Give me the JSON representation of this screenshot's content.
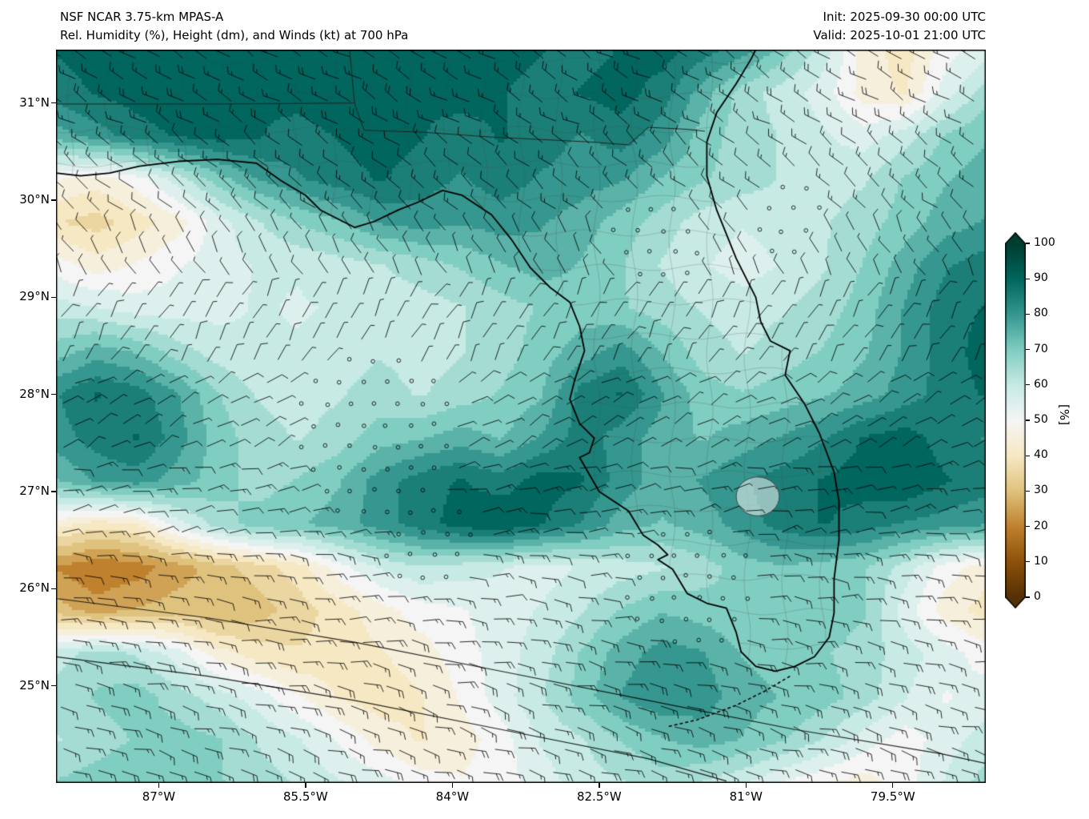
{
  "header": {
    "title_line1": "NSF NCAR 3.75-km MPAS-A",
    "title_line2": "Rel. Humidity (%), Height (dm), and Winds (kt) at 700 hPa",
    "init_line": "Init: 2025-09-30 00:00 UTC",
    "valid_line": "Valid: 2025-10-01 21:00 UTC"
  },
  "axes": {
    "x_ticks": [
      {
        "label": "87°W",
        "lon": 87.0
      },
      {
        "label": "85.5°W",
        "lon": 85.5
      },
      {
        "label": "84°W",
        "lon": 84.0
      },
      {
        "label": "82.5°W",
        "lon": 82.5
      },
      {
        "label": "81°W",
        "lon": 81.0
      },
      {
        "label": "79.5°W",
        "lon": 79.5
      }
    ],
    "y_ticks": [
      {
        "label": "31°N",
        "lat": 31.0
      },
      {
        "label": "30°N",
        "lat": 30.0
      },
      {
        "label": "29°N",
        "lat": 29.0
      },
      {
        "label": "28°N",
        "lat": 28.0
      },
      {
        "label": "27°N",
        "lat": 27.0
      },
      {
        "label": "26°N",
        "lat": 26.0
      },
      {
        "label": "25°N",
        "lat": 25.0
      }
    ]
  },
  "colorbar": {
    "label": "[%]",
    "ticks": [
      100,
      90,
      80,
      70,
      60,
      50,
      40,
      30,
      20,
      10,
      0
    ],
    "stops": [
      {
        "v": 0,
        "c": "#543005"
      },
      {
        "v": 10,
        "c": "#8c510a"
      },
      {
        "v": 20,
        "c": "#bf812d"
      },
      {
        "v": 30,
        "c": "#dfc27d"
      },
      {
        "v": 40,
        "c": "#f6e8c3"
      },
      {
        "v": 50,
        "c": "#f5f5f5"
      },
      {
        "v": 60,
        "c": "#c7eae5"
      },
      {
        "v": 70,
        "c": "#80cdc1"
      },
      {
        "v": 80,
        "c": "#35978f"
      },
      {
        "v": 90,
        "c": "#01665e"
      },
      {
        "v": 100,
        "c": "#003c30"
      }
    ]
  },
  "chart_data": {
    "type": "heatmap",
    "title": "NSF NCAR 3.75-km MPAS-A",
    "subtitle": "Rel. Humidity (%), Height (dm), and Winds (kt) at 700 hPa",
    "units": "%",
    "lon_range_w": [
      88.05,
      78.55
    ],
    "lat_range": [
      31.55,
      24.0
    ],
    "value_range": [
      0,
      100
    ],
    "rh_grid": {
      "cols": 24,
      "rows": 18,
      "note": "relative humidity percent, row 0 = north (31.55N), col 0 = west (88.05W)",
      "values": [
        [
          88,
          90,
          92,
          90,
          88,
          90,
          92,
          90,
          88,
          90,
          92,
          90,
          88,
          85,
          88,
          90,
          85,
          80,
          70,
          60,
          45,
          40,
          50,
          55
        ],
        [
          85,
          88,
          90,
          92,
          90,
          88,
          90,
          92,
          90,
          88,
          90,
          88,
          85,
          88,
          90,
          85,
          75,
          65,
          60,
          55,
          45,
          42,
          55,
          65
        ],
        [
          75,
          80,
          85,
          88,
          90,
          88,
          85,
          88,
          90,
          88,
          85,
          88,
          85,
          82,
          85,
          80,
          70,
          65,
          62,
          58,
          55,
          60,
          68,
          72
        ],
        [
          48,
          45,
          50,
          60,
          70,
          78,
          82,
          85,
          88,
          85,
          82,
          85,
          82,
          80,
          78,
          72,
          68,
          65,
          62,
          60,
          62,
          68,
          72,
          75
        ],
        [
          38,
          35,
          40,
          45,
          55,
          62,
          68,
          72,
          78,
          80,
          78,
          80,
          78,
          75,
          70,
          65,
          60,
          58,
          60,
          62,
          65,
          70,
          75,
          78
        ],
        [
          50,
          45,
          48,
          52,
          55,
          58,
          58,
          60,
          62,
          65,
          68,
          72,
          75,
          72,
          68,
          62,
          58,
          55,
          58,
          62,
          68,
          75,
          82,
          85
        ],
        [
          60,
          58,
          55,
          55,
          56,
          58,
          57,
          58,
          60,
          60,
          62,
          65,
          68,
          70,
          68,
          65,
          62,
          60,
          62,
          65,
          70,
          78,
          85,
          88
        ],
        [
          70,
          75,
          72,
          65,
          60,
          58,
          58,
          60,
          62,
          60,
          62,
          65,
          70,
          75,
          80,
          72,
          65,
          62,
          65,
          68,
          72,
          78,
          85,
          90
        ],
        [
          82,
          88,
          85,
          78,
          68,
          62,
          60,
          62,
          65,
          62,
          65,
          68,
          72,
          85,
          88,
          78,
          70,
          68,
          70,
          72,
          75,
          80,
          85,
          88
        ],
        [
          80,
          85,
          88,
          80,
          70,
          65,
          62,
          65,
          70,
          72,
          75,
          72,
          78,
          85,
          80,
          75,
          72,
          75,
          78,
          82,
          88,
          90,
          85,
          82
        ],
        [
          72,
          78,
          80,
          75,
          70,
          65,
          68,
          72,
          80,
          85,
          88,
          85,
          90,
          88,
          80,
          75,
          78,
          82,
          85,
          88,
          90,
          92,
          88,
          85
        ],
        [
          45,
          40,
          42,
          55,
          65,
          70,
          72,
          75,
          80,
          85,
          90,
          92,
          88,
          82,
          75,
          72,
          75,
          80,
          85,
          88,
          85,
          82,
          80,
          78
        ],
        [
          22,
          18,
          20,
          25,
          30,
          35,
          40,
          50,
          58,
          62,
          60,
          58,
          55,
          58,
          60,
          62,
          65,
          70,
          72,
          70,
          68,
          60,
          50,
          45
        ],
        [
          30,
          25,
          28,
          30,
          28,
          30,
          35,
          40,
          45,
          50,
          52,
          55,
          58,
          62,
          68,
          72,
          70,
          68,
          70,
          72,
          68,
          55,
          45,
          40
        ],
        [
          60,
          65,
          62,
          55,
          45,
          40,
          38,
          40,
          42,
          45,
          50,
          55,
          60,
          68,
          75,
          80,
          78,
          72,
          70,
          68,
          65,
          60,
          55,
          50
        ],
        [
          65,
          68,
          70,
          65,
          60,
          55,
          48,
          42,
          40,
          42,
          48,
          55,
          62,
          70,
          78,
          82,
          80,
          75,
          72,
          70,
          65,
          58,
          52,
          55
        ],
        [
          62,
          65,
          68,
          70,
          68,
          62,
          58,
          52,
          45,
          42,
          45,
          50,
          58,
          62,
          68,
          72,
          75,
          72,
          68,
          62,
          55,
          50,
          55,
          60
        ],
        [
          68,
          70,
          72,
          70,
          68,
          65,
          62,
          58,
          55,
          50,
          48,
          50,
          55,
          60,
          62,
          65,
          62,
          58,
          52,
          48,
          45,
          50,
          58,
          65
        ]
      ]
    },
    "wind_bands": [
      {
        "dir": 300,
        "spd": 18
      },
      {
        "dir": 310,
        "spd": 14
      },
      {
        "dir": 330,
        "spd": 10
      },
      {
        "dir": 30,
        "spd": 8
      },
      {
        "dir": 60,
        "spd": 10
      },
      {
        "dir": 80,
        "spd": 12
      },
      {
        "dir": 95,
        "spd": 16
      },
      {
        "dir": 100,
        "spd": 18
      },
      {
        "dir": 105,
        "spd": 18
      }
    ],
    "calm_zones": [
      [
        84.8,
        27.55,
        0.85
      ],
      [
        81.6,
        26.05,
        0.7
      ],
      [
        81.9,
        29.6,
        0.5
      ],
      [
        84.3,
        26.45,
        0.5
      ],
      [
        80.6,
        29.8,
        0.4
      ]
    ],
    "geometry": {
      "coastline": [
        [
          88.05,
          30.28
        ],
        [
          87.8,
          30.25
        ],
        [
          87.5,
          30.28
        ],
        [
          87.2,
          30.35
        ],
        [
          86.8,
          30.4
        ],
        [
          86.4,
          30.42
        ],
        [
          86.0,
          30.38
        ],
        [
          85.75,
          30.2
        ],
        [
          85.5,
          30.05
        ],
        [
          85.35,
          29.9
        ],
        [
          85.0,
          29.72
        ],
        [
          84.8,
          29.78
        ],
        [
          84.55,
          29.9
        ],
        [
          84.35,
          29.98
        ],
        [
          84.1,
          30.1
        ],
        [
          83.9,
          30.05
        ],
        [
          83.6,
          29.85
        ],
        [
          83.4,
          29.6
        ],
        [
          83.2,
          29.3
        ],
        [
          83.0,
          29.1
        ],
        [
          82.8,
          28.95
        ],
        [
          82.7,
          28.7
        ],
        [
          82.65,
          28.45
        ],
        [
          82.75,
          28.15
        ],
        [
          82.8,
          27.95
        ],
        [
          82.7,
          27.7
        ],
        [
          82.55,
          27.55
        ],
        [
          82.6,
          27.4
        ],
        [
          82.7,
          27.35
        ],
        [
          82.5,
          27.0
        ],
        [
          82.2,
          26.8
        ],
        [
          82.05,
          26.55
        ],
        [
          81.9,
          26.45
        ],
        [
          81.8,
          26.35
        ],
        [
          81.9,
          26.3
        ],
        [
          81.75,
          26.2
        ],
        [
          81.6,
          25.95
        ],
        [
          81.4,
          25.85
        ],
        [
          81.2,
          25.8
        ],
        [
          81.1,
          25.55
        ],
        [
          81.05,
          25.35
        ],
        [
          80.9,
          25.2
        ],
        [
          80.7,
          25.15
        ],
        [
          80.5,
          25.2
        ],
        [
          80.3,
          25.3
        ],
        [
          80.15,
          25.5
        ],
        [
          80.1,
          25.75
        ],
        [
          80.1,
          26.1
        ],
        [
          80.05,
          26.5
        ],
        [
          80.05,
          26.9
        ],
        [
          80.1,
          27.2
        ],
        [
          80.25,
          27.6
        ],
        [
          80.4,
          27.9
        ],
        [
          80.6,
          28.2
        ],
        [
          80.55,
          28.45
        ],
        [
          80.75,
          28.55
        ],
        [
          80.85,
          28.75
        ],
        [
          80.9,
          29.0
        ],
        [
          81.1,
          29.4
        ],
        [
          81.3,
          29.9
        ],
        [
          81.4,
          30.25
        ],
        [
          81.4,
          30.6
        ],
        [
          81.3,
          30.9
        ],
        [
          81.1,
          31.2
        ],
        [
          80.95,
          31.45
        ],
        [
          80.9,
          31.55
        ]
      ],
      "borders": [
        [
          [
            88.05,
            30.99
          ],
          [
            86.5,
            30.99
          ],
          [
            85.0,
            31.0
          ]
        ],
        [
          [
            85.0,
            31.0
          ],
          [
            85.05,
            31.55
          ]
        ],
        [
          [
            85.0,
            31.0
          ],
          [
            84.95,
            30.85
          ],
          [
            84.9,
            30.72
          ],
          [
            84.3,
            30.7
          ],
          [
            83.6,
            30.65
          ],
          [
            82.6,
            30.6
          ],
          [
            82.2,
            30.57
          ],
          [
            82.0,
            30.75
          ],
          [
            81.6,
            30.73
          ],
          [
            81.42,
            30.71
          ]
        ]
      ],
      "lake_okeechobee": {
        "lon": 80.88,
        "lat": 26.95,
        "rx": 0.22,
        "ry": 0.2
      },
      "florida_keys": [
        [
          80.55,
          25.1
        ],
        [
          80.8,
          24.95
        ],
        [
          81.1,
          24.8
        ],
        [
          81.5,
          24.65
        ],
        [
          81.8,
          24.58
        ]
      ],
      "height_contours": [
        [
          [
            88.05,
            25.9
          ],
          [
            86.5,
            25.7
          ],
          [
            85.0,
            25.45
          ],
          [
            83.5,
            25.15
          ],
          [
            82.0,
            24.85
          ],
          [
            80.5,
            24.55
          ],
          [
            79.0,
            24.3
          ],
          [
            78.55,
            24.2
          ]
        ],
        [
          [
            88.05,
            25.3
          ],
          [
            86.5,
            25.1
          ],
          [
            85.0,
            24.85
          ],
          [
            83.5,
            24.55
          ],
          [
            82.0,
            24.25
          ],
          [
            81.2,
            24.02
          ]
        ]
      ]
    }
  }
}
